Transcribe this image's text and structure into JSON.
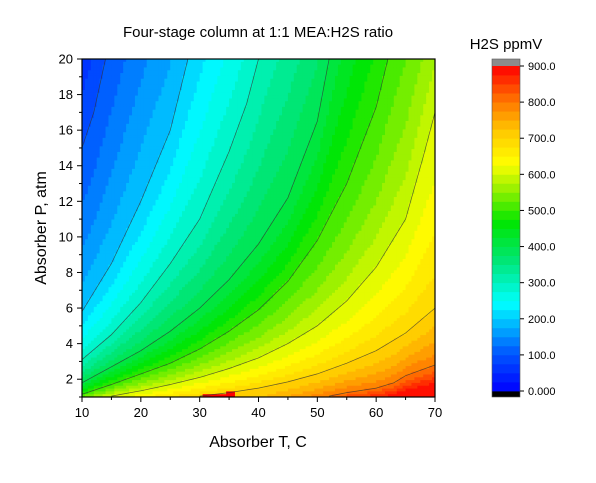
{
  "chart_data": {
    "type": "heatmap",
    "subtype": "filled-contour",
    "title": "Four-stage column at 1:1 MEA:H2S ratio",
    "xlabel": "Absorber T, C",
    "ylabel": "Absorber P, atm",
    "xlim": [
      10,
      70
    ],
    "ylim": [
      1,
      20
    ],
    "x_ticks": [
      10,
      20,
      30,
      40,
      50,
      60,
      70
    ],
    "x_tick_labels": [
      "10",
      "20",
      "30",
      "40",
      "50",
      "60",
      "70"
    ],
    "y_ticks": [
      2,
      4,
      6,
      8,
      10,
      12,
      14,
      16,
      18,
      20
    ],
    "y_tick_labels": [
      "2",
      "4",
      "6",
      "8",
      "10",
      "12",
      "14",
      "16",
      "18",
      "20"
    ],
    "grid": false,
    "colorbar": {
      "title": "H2S ppmV",
      "min": 0,
      "max": 900,
      "levels_step": 25,
      "tick_values": [
        0,
        100,
        200,
        300,
        400,
        500,
        600,
        700,
        800,
        900
      ],
      "tick_labels": [
        "0.000",
        "100.0",
        "200.0",
        "300.0",
        "400.0",
        "500.0",
        "600.0",
        "700.0",
        "800.0",
        "900.0"
      ],
      "under_color": "#000000",
      "over_color": "#8c8c8c",
      "colormap": "rainbow"
    },
    "contour_lines": [
      {
        "level": 100,
        "points": [
          [
            10,
            15.0
          ],
          [
            12,
            17.0
          ],
          [
            14,
            20.0
          ]
        ]
      },
      {
        "level": 200,
        "points": [
          [
            10,
            5.8
          ],
          [
            15,
            8.5
          ],
          [
            20,
            12.0
          ],
          [
            25,
            16.0
          ],
          [
            28,
            20.0
          ]
        ]
      },
      {
        "level": 300,
        "points": [
          [
            10,
            3.1
          ],
          [
            15,
            4.5
          ],
          [
            20,
            6.3
          ],
          [
            25,
            8.5
          ],
          [
            30,
            11.0
          ],
          [
            35,
            14.8
          ],
          [
            38,
            17.5
          ],
          [
            40,
            20.0
          ]
        ]
      },
      {
        "level": 400,
        "points": [
          [
            10,
            1.8
          ],
          [
            15,
            2.7
          ],
          [
            20,
            3.6
          ],
          [
            25,
            4.7
          ],
          [
            30,
            6.0
          ],
          [
            35,
            7.6
          ],
          [
            40,
            9.6
          ],
          [
            45,
            12.2
          ],
          [
            50,
            16.5
          ],
          [
            52,
            20.0
          ]
        ]
      },
      {
        "level": 500,
        "points": [
          [
            10,
            1.15
          ],
          [
            15,
            1.7
          ],
          [
            20,
            2.3
          ],
          [
            25,
            2.9
          ],
          [
            30,
            3.7
          ],
          [
            35,
            4.7
          ],
          [
            40,
            5.9
          ],
          [
            45,
            7.5
          ],
          [
            50,
            9.8
          ],
          [
            55,
            13.0
          ],
          [
            60,
            17.3
          ],
          [
            62,
            20.0
          ]
        ]
      },
      {
        "level": 600,
        "points": [
          [
            15,
            1.05
          ],
          [
            20,
            1.35
          ],
          [
            25,
            1.7
          ],
          [
            30,
            2.1
          ],
          [
            35,
            2.6
          ],
          [
            40,
            3.2
          ],
          [
            45,
            4.0
          ],
          [
            50,
            5.0
          ],
          [
            55,
            6.4
          ],
          [
            60,
            8.3
          ],
          [
            65,
            11.0
          ],
          [
            68,
            14.5
          ],
          [
            70,
            17.0
          ]
        ]
      },
      {
        "level": 700,
        "points": [
          [
            30,
            1.05
          ],
          [
            35,
            1.25
          ],
          [
            40,
            1.5
          ],
          [
            45,
            1.85
          ],
          [
            50,
            2.3
          ],
          [
            55,
            2.9
          ],
          [
            60,
            3.6
          ],
          [
            65,
            4.6
          ],
          [
            70,
            6.0
          ]
        ]
      },
      {
        "level": 800,
        "points": [
          [
            52,
            1.05
          ],
          [
            55,
            1.25
          ],
          [
            60,
            1.5
          ],
          [
            63,
            1.8
          ],
          [
            65,
            2.2
          ],
          [
            70,
            2.8
          ]
        ]
      }
    ]
  }
}
